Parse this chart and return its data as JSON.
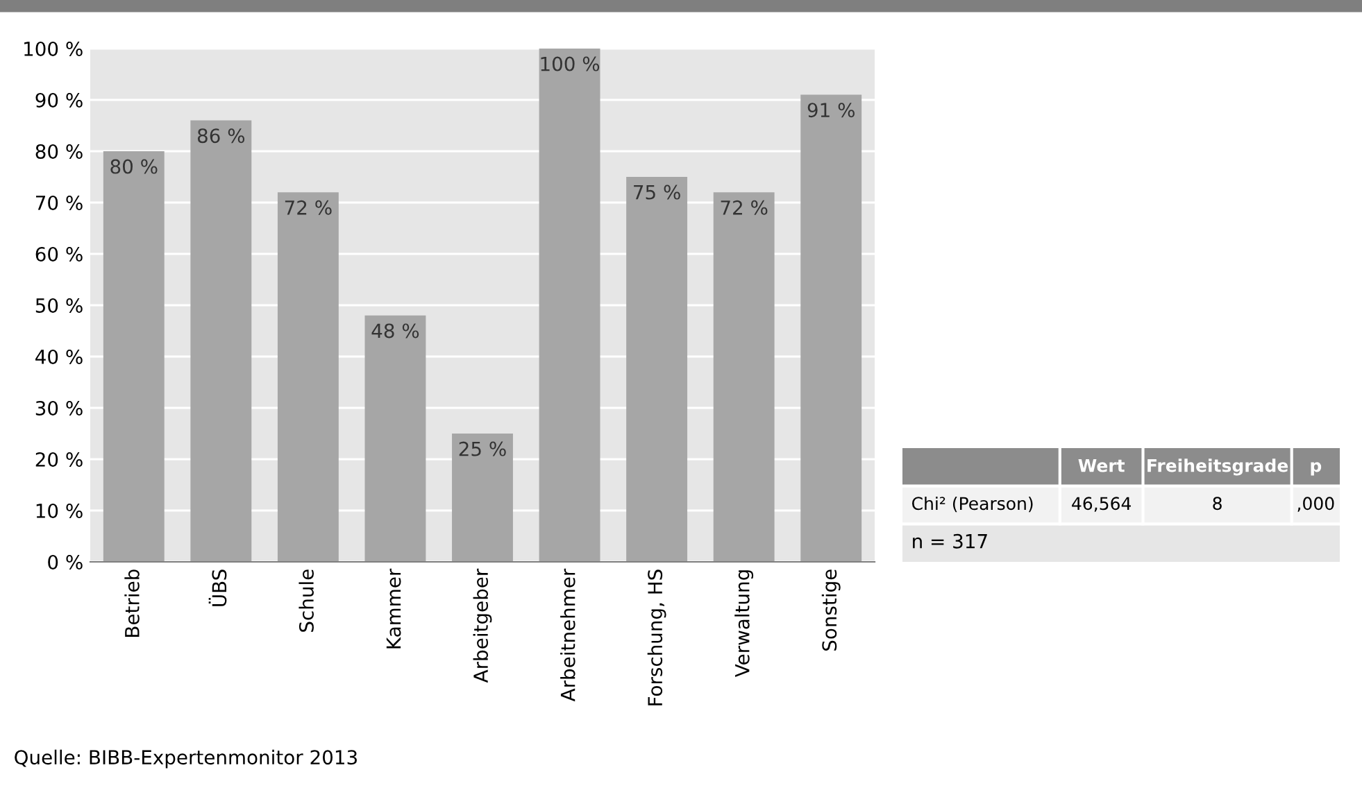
{
  "chart_data": [
    {
      "type": "bar",
      "categories": [
        "Betrieb",
        "ÜBS",
        "Schule",
        "Kammer",
        "Arbeitgeber",
        "Arbeitnehmer",
        "Forschung, HS",
        "Verwaltung",
        "Sonstige"
      ],
      "values": [
        80,
        86,
        72,
        48,
        25,
        100,
        75,
        72,
        91
      ],
      "value_labels": [
        "80 %",
        "86 %",
        "72 %",
        "48 %",
        "25 %",
        "100 %",
        "75 %",
        "72 %",
        "91 %"
      ],
      "color": "#a6a6a6",
      "ylim": [
        0,
        100
      ],
      "yticks": [
        {
          "value": 0,
          "label": "0 %"
        },
        {
          "value": 10,
          "label": "10 %"
        },
        {
          "value": 20,
          "label": "20 %"
        },
        {
          "value": 30,
          "label": "30 %"
        },
        {
          "value": 40,
          "label": "40 %"
        },
        {
          "value": 50,
          "label": "50 %"
        },
        {
          "value": 60,
          "label": "60 %"
        },
        {
          "value": 70,
          "label": "70 %"
        },
        {
          "value": 80,
          "label": "80 %"
        },
        {
          "value": 90,
          "label": "90 %"
        },
        {
          "value": 100,
          "label": "100 %"
        }
      ],
      "grid": "y",
      "annotations": [
        "Quelle: BIBB-Expertenmonitor 2013"
      ]
    },
    {
      "type": "other",
      "annotations": [
        "Wert",
        "Freiheitsgrade",
        "p",
        "Chi² (Pearson)",
        "46,564",
        "8",
        ",000",
        "n = 317"
      ]
    }
  ]
}
